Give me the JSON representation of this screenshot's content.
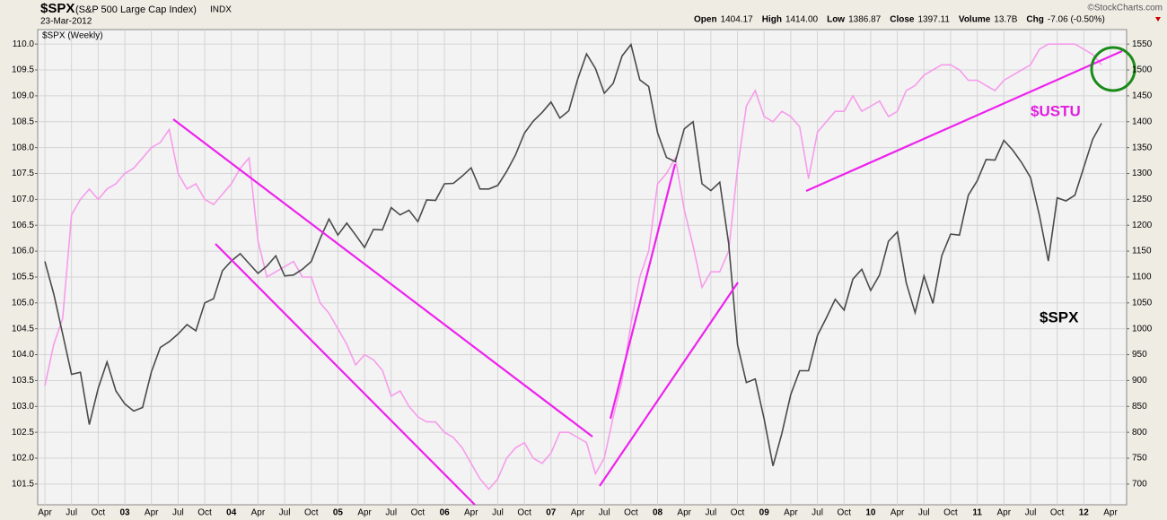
{
  "chart_data": {
    "type": "line",
    "title": "$SPX",
    "subtitle": "(S&P 500 Large Cap Index)",
    "exchange": "INDX",
    "date": "23-Mar-2012",
    "quote": [
      {
        "label": "Open",
        "value": "1404.17"
      },
      {
        "label": "High",
        "value": "1414.00"
      },
      {
        "label": "Low",
        "value": "1386.87"
      },
      {
        "label": "Close",
        "value": "1397.11"
      },
      {
        "label": "Volume",
        "value": "13.7B"
      },
      {
        "label": "Chg",
        "value": "-7.06 (-0.50%)"
      }
    ],
    "credit": "©StockCharts.com",
    "panel_label": "$SPX (Weekly)",
    "categories": [
      "Apr",
      null,
      null,
      "Jul",
      null,
      null,
      "Oct",
      null,
      null,
      "03",
      null,
      null,
      "Apr",
      null,
      null,
      "Jul",
      null,
      null,
      "Oct",
      null,
      null,
      "04",
      null,
      null,
      "Apr",
      null,
      null,
      "Jul",
      null,
      null,
      "Oct",
      null,
      null,
      "05",
      null,
      null,
      "Apr",
      null,
      null,
      "Jul",
      null,
      null,
      "Oct",
      null,
      null,
      "06",
      null,
      null,
      "Apr",
      null,
      null,
      "Jul",
      null,
      null,
      "Oct",
      null,
      null,
      "07",
      null,
      null,
      "Apr",
      null,
      null,
      "Jul",
      null,
      null,
      "Oct",
      null,
      null,
      "08",
      null,
      null,
      "Apr",
      null,
      null,
      "Jul",
      null,
      null,
      "Oct",
      null,
      null,
      "09",
      null,
      null,
      "Apr",
      null,
      null,
      "Jul",
      null,
      null,
      "Oct",
      null,
      null,
      "10",
      null,
      null,
      "Apr",
      null,
      null,
      "Jul",
      null,
      null,
      "Oct",
      null,
      null,
      "11",
      null,
      null,
      "Apr",
      null,
      null,
      "Jul",
      null,
      null,
      "Oct",
      null,
      null,
      "12",
      null,
      null,
      "Apr"
    ],
    "series": [
      {
        "name": "$USTU",
        "color": "#f79cec",
        "values": [
          103.4,
          104.2,
          104.7,
          106.7,
          107.0,
          107.2,
          107.0,
          107.2,
          107.3,
          107.5,
          107.6,
          107.8,
          108.0,
          108.1,
          108.35,
          107.5,
          107.2,
          107.3,
          107.0,
          106.9,
          107.1,
          107.3,
          107.6,
          107.8,
          106.2,
          105.5,
          105.6,
          105.7,
          105.8,
          105.5,
          105.5,
          105.0,
          104.8,
          104.5,
          104.2,
          103.8,
          104.0,
          103.9,
          103.7,
          103.2,
          103.3,
          103.0,
          102.8,
          102.7,
          102.7,
          102.5,
          102.4,
          102.2,
          101.9,
          101.6,
          101.4,
          101.6,
          102.0,
          102.2,
          102.3,
          102.0,
          101.9,
          102.1,
          102.5,
          102.5,
          102.4,
          102.3,
          101.7,
          102.0,
          102.8,
          103.5,
          104.6,
          105.5,
          106.0,
          107.3,
          107.5,
          107.8,
          106.8,
          106.1,
          105.3,
          105.6,
          105.6,
          106.0,
          107.6,
          108.8,
          109.1,
          108.6,
          108.5,
          108.7,
          108.6,
          108.4,
          107.4,
          108.3,
          108.5,
          108.7,
          108.7,
          109.0,
          108.7,
          108.8,
          108.9,
          108.6,
          108.7,
          109.1,
          109.2,
          109.4,
          109.5,
          109.6,
          109.6,
          109.5,
          109.3,
          109.3,
          109.2,
          109.1,
          109.3,
          109.4,
          109.5,
          109.6,
          109.9,
          110.0,
          110.0,
          110.0,
          110.0,
          109.9,
          109.8,
          109.6,
          null
        ]
      },
      {
        "name": "$SPX",
        "color": "#4a4a4a",
        "axis": "y2",
        "values": [
          1130,
          1067,
          990,
          912,
          916,
          815,
          885,
          936,
          880,
          855,
          841,
          848,
          917,
          964,
          975,
          990,
          1008,
          996,
          1050,
          1058,
          1112,
          1131,
          1145,
          1126,
          1107,
          1121,
          1141,
          1102,
          1104,
          1115,
          1130,
          1174,
          1212,
          1181,
          1204,
          1181,
          1157,
          1192,
          1191,
          1234,
          1220,
          1229,
          1207,
          1249,
          1248,
          1280,
          1281,
          1295,
          1311,
          1270,
          1270,
          1277,
          1304,
          1336,
          1378,
          1401,
          1418,
          1438,
          1407,
          1421,
          1482,
          1531,
          1503,
          1455,
          1474,
          1527,
          1549,
          1481,
          1468,
          1379,
          1331,
          1323,
          1386,
          1400,
          1280,
          1267,
          1283,
          1165,
          969,
          896,
          903,
          826,
          735,
          798,
          873,
          919,
          919,
          987,
          1021,
          1057,
          1036,
          1096,
          1115,
          1074,
          1104,
          1169,
          1187,
          1089,
          1031,
          1102,
          1049,
          1141,
          1183,
          1181,
          1258,
          1286,
          1327,
          1326,
          1364,
          1345,
          1321,
          1292,
          1219,
          1131,
          1253,
          1247,
          1258,
          1312,
          1366,
          1397,
          null
        ]
      }
    ],
    "ylim": [
      101.1,
      110.28
    ],
    "yticks": [
      101.5,
      {
        "value": 102,
        "label": "102.0"
      },
      102.5,
      {
        "value": 103,
        "label": "103.0"
      },
      103.5,
      {
        "value": 104,
        "label": "104.0"
      },
      104.5,
      {
        "value": 105,
        "label": "105.0"
      },
      105.5,
      {
        "value": 106,
        "label": "106.0"
      },
      106.5,
      {
        "value": 107,
        "label": "107.0"
      },
      107.5,
      {
        "value": 108,
        "label": "108.0"
      },
      108.5,
      {
        "value": 109,
        "label": "109.0"
      },
      109.5,
      {
        "value": 110,
        "label": "110.0"
      }
    ],
    "y2lim": [
      660,
      1578
    ],
    "y2ticks": [
      700,
      750,
      800,
      850,
      900,
      950,
      1000,
      1050,
      1100,
      1150,
      1200,
      1250,
      1300,
      1350,
      1400,
      1450,
      1500,
      1550
    ],
    "grid": true
  }
}
